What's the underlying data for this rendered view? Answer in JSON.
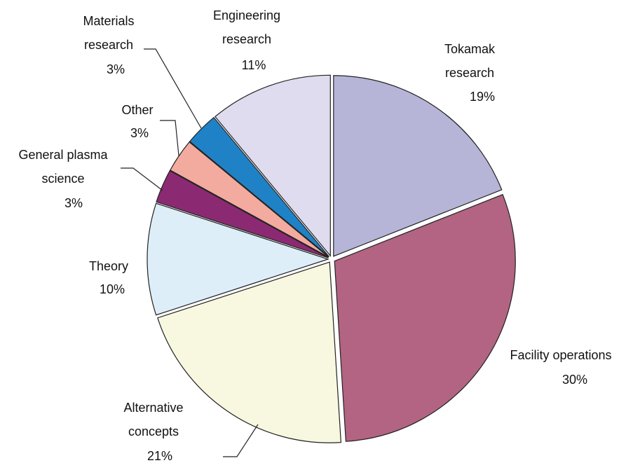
{
  "chart_data": {
    "type": "pie",
    "categories": [
      "Tokamak research",
      "Facility operations",
      "Alternative concepts",
      "Theory",
      "General plasma science",
      "Other",
      "Materials research",
      "Engineering research"
    ],
    "values": [
      19,
      30,
      21,
      10,
      3,
      3,
      3,
      11
    ],
    "value_labels": [
      "19%",
      "30%",
      "21%",
      "10%",
      "3%",
      "3%",
      "3%",
      "11%"
    ],
    "colors": [
      "#b6b5d8",
      "#b26482",
      "#f8f8e0",
      "#deeef8",
      "#8b2a72",
      "#f3ab9f",
      "#1f82c7",
      "#dedcee"
    ]
  }
}
